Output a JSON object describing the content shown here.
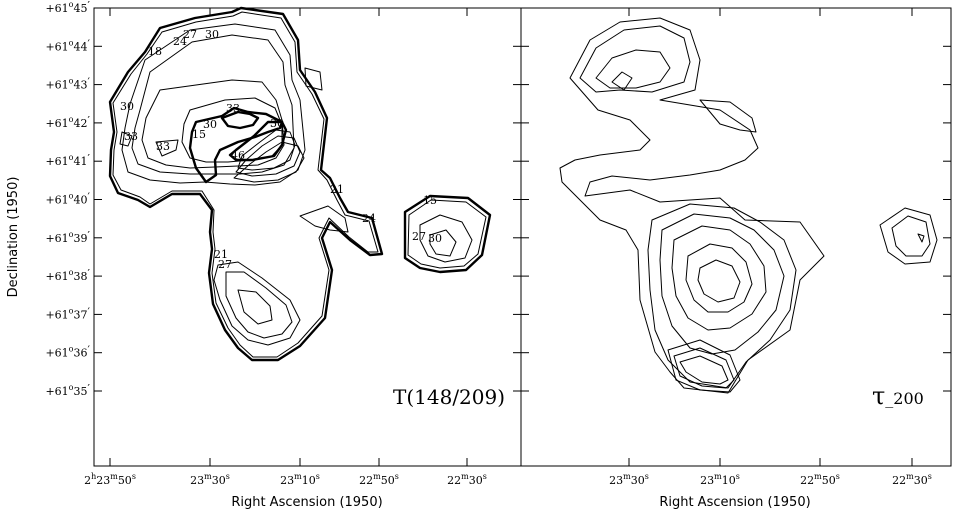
{
  "chart_data": [
    {
      "type": "contour",
      "panel_label": "T(148/209)",
      "xlabel": "Right Ascension (1950)",
      "ylabel": "Declination (1950)",
      "x_ticks": [
        "2h23m50s",
        "23m30s",
        "23m10s",
        "22m50s",
        "22m30s"
      ],
      "y_ticks": [
        "+61°45′",
        "+61°44′",
        "+61°43′",
        "+61°42′",
        "+61°41′",
        "+61°40′",
        "+61°39′",
        "+61°38′",
        "+61°37′",
        "+61°36′",
        "+61°35′"
      ],
      "contour_labels": [
        "18",
        "24",
        "27",
        "30",
        "30",
        "33",
        "15",
        "33",
        "30",
        "33",
        "30",
        "46",
        "21",
        "24",
        "21",
        "27",
        "15",
        "27",
        "30"
      ]
    },
    {
      "type": "contour",
      "panel_label": "τ_200",
      "xlabel": "Right Ascension (1950)",
      "ylabel": "",
      "x_ticks": [
        "23m30s",
        "23m10s",
        "22m50s",
        "22m30s"
      ],
      "contour_labels": []
    }
  ],
  "text": {
    "x_ticks_left": [
      {
        "h": "2",
        "m": "23",
        "s": "50"
      },
      {
        "h": "",
        "m": "23",
        "s": "30"
      },
      {
        "h": "",
        "m": "23",
        "s": "10"
      },
      {
        "h": "",
        "m": "22",
        "s": "50"
      },
      {
        "h": "",
        "m": "22",
        "s": "30"
      }
    ],
    "x_ticks_right": [
      {
        "m": "23",
        "s": "30"
      },
      {
        "m": "23",
        "s": "10"
      },
      {
        "m": "22",
        "s": "50"
      },
      {
        "m": "22",
        "s": "30"
      }
    ],
    "y_ticks": [
      {
        "deg": "+61",
        "min": "45"
      },
      {
        "deg": "+61",
        "min": "44"
      },
      {
        "deg": "+61",
        "min": "43"
      },
      {
        "deg": "+61",
        "min": "42"
      },
      {
        "deg": "+61",
        "min": "41"
      },
      {
        "deg": "+61",
        "min": "40"
      },
      {
        "deg": "+61",
        "min": "39"
      },
      {
        "deg": "+61",
        "min": "38"
      },
      {
        "deg": "+61",
        "min": "37"
      },
      {
        "deg": "+61",
        "min": "36"
      },
      {
        "deg": "+61",
        "min": "35"
      }
    ],
    "xlabel_left": "Right Ascension (1950)",
    "xlabel_right": "Right Ascension (1950)",
    "ylabel": "Declination (1950)",
    "panel_left": "T(148/209)",
    "panel_right_symbol": "τ",
    "panel_right_suffix": "_200"
  }
}
